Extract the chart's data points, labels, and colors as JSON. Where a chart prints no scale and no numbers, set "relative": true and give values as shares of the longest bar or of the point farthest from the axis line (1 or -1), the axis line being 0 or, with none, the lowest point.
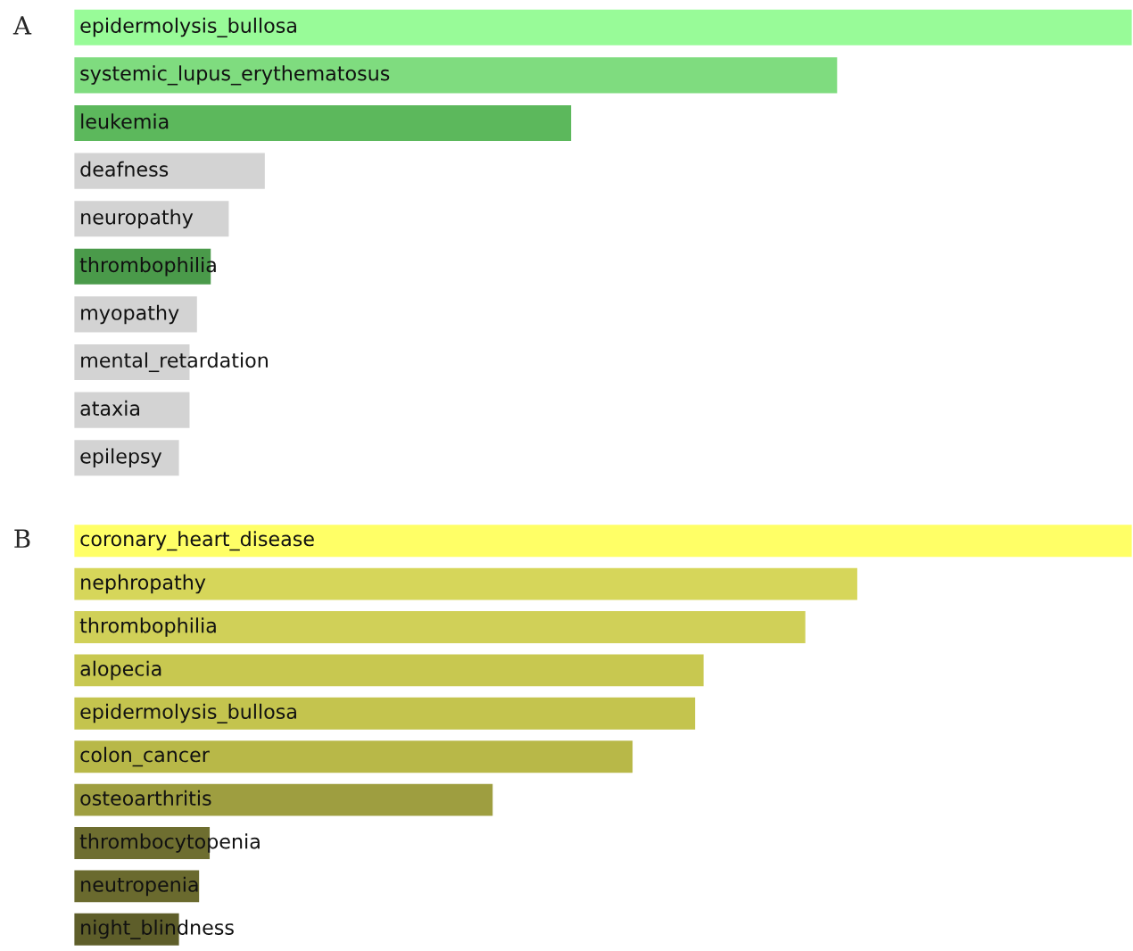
{
  "chart_data": [
    {
      "type": "bar",
      "orientation": "horizontal",
      "relative": true,
      "title": "A",
      "categories": [
        "epidermolysis_bullosa",
        "systemic_lupus_erythematosus",
        "leukemia",
        "deafness",
        "neuropathy",
        "thrombophilia",
        "myopathy",
        "mental_retardation",
        "ataxia",
        "epilepsy"
      ],
      "values": [
        1,
        0.722,
        0.471,
        0.182,
        0.148,
        0.131,
        0.118,
        0.111,
        0.111,
        0.101
      ],
      "colors": [
        "#98fb98",
        "#7fdc7f",
        "#5cb85c",
        "#d3d3d3",
        "#d3d3d3",
        "#4a9a4a",
        "#d3d3d3",
        "#d3d3d3",
        "#d3d3d3",
        "#d3d3d3"
      ]
    },
    {
      "type": "bar",
      "orientation": "horizontal",
      "relative": true,
      "title": "B",
      "categories": [
        "coronary_heart_disease",
        "nephropathy",
        "thrombophilia",
        "alopecia",
        "epidermolysis_bullosa",
        "colon_cancer",
        "osteoarthritis",
        "thrombocytopenia",
        "neutropenia",
        "night_blindness"
      ],
      "values": [
        1,
        0.741,
        0.692,
        0.596,
        0.588,
        0.529,
        0.397,
        0.13,
        0.12,
        0.101
      ],
      "colors": [
        "#ffff66",
        "#d6d65a",
        "#d0d058",
        "#c8c850",
        "#c4c44e",
        "#b8b848",
        "#9e9e40",
        "#6e6e30",
        "#6a6a2e",
        "#5e5e2a"
      ]
    }
  ]
}
